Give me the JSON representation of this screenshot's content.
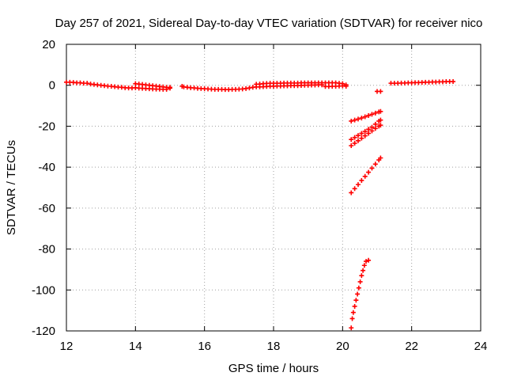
{
  "chart_data": {
    "type": "scatter",
    "title": "Day 257 of 2021, Sidereal Day-to-day VTEC variation (SDTVAR) for receiver nico",
    "xlabel": "GPS time / hours",
    "ylabel": "SDTVAR / TECUs",
    "xlim": [
      12,
      24
    ],
    "ylim": [
      -120,
      20
    ],
    "xticks": [
      12,
      14,
      16,
      18,
      20,
      22,
      24
    ],
    "yticks": [
      20,
      0,
      -20,
      -40,
      -60,
      -80,
      -100,
      -120
    ],
    "grid": true,
    "marker": "+",
    "color": "#ff0000",
    "series": [
      {
        "points": [
          [
            12.0,
            1.5
          ],
          [
            12.1,
            1.5
          ],
          [
            12.2,
            1.4
          ],
          [
            12.3,
            1.2
          ],
          [
            12.4,
            1.2
          ],
          [
            12.5,
            1.0
          ],
          [
            12.6,
            1.0
          ],
          [
            12.7,
            0.6
          ],
          [
            12.8,
            0.4
          ],
          [
            12.9,
            0.2
          ],
          [
            13.0,
            0.0
          ],
          [
            13.1,
            -0.2
          ],
          [
            13.2,
            -0.4
          ],
          [
            13.3,
            -0.5
          ],
          [
            13.4,
            -0.7
          ],
          [
            13.5,
            -0.9
          ],
          [
            13.6,
            -1.0
          ],
          [
            13.7,
            -1.2
          ],
          [
            13.8,
            -1.3
          ],
          [
            13.9,
            -1.3
          ],
          [
            14.0,
            -1.2
          ],
          [
            14.0,
            0.8
          ],
          [
            14.1,
            -1.4
          ],
          [
            14.1,
            0.6
          ],
          [
            14.2,
            -1.5
          ],
          [
            14.2,
            0.4
          ],
          [
            14.3,
            -1.6
          ],
          [
            14.3,
            0.2
          ],
          [
            14.4,
            -1.7
          ],
          [
            14.4,
            0.0
          ],
          [
            14.5,
            -1.8
          ],
          [
            14.5,
            -0.2
          ],
          [
            14.6,
            -1.9
          ],
          [
            14.6,
            -0.4
          ],
          [
            14.7,
            -1.9
          ],
          [
            14.7,
            -0.6
          ],
          [
            14.8,
            -2.0
          ],
          [
            14.8,
            -0.8
          ],
          [
            14.9,
            -2.0
          ],
          [
            14.9,
            -1.0
          ],
          [
            15.0,
            -1.4
          ],
          [
            15.0,
            -1.0
          ],
          [
            15.35,
            -0.5
          ],
          [
            15.4,
            -0.8
          ],
          [
            15.5,
            -1.0
          ],
          [
            15.6,
            -1.2
          ],
          [
            15.7,
            -1.3
          ],
          [
            15.8,
            -1.5
          ],
          [
            15.9,
            -1.6
          ],
          [
            16.0,
            -1.7
          ],
          [
            16.1,
            -1.8
          ],
          [
            16.2,
            -1.9
          ],
          [
            16.3,
            -2.0
          ],
          [
            16.4,
            -2.0
          ],
          [
            16.5,
            -2.0
          ],
          [
            16.6,
            -2.1
          ],
          [
            16.7,
            -2.1
          ],
          [
            16.8,
            -2.0
          ],
          [
            16.9,
            -2.0
          ],
          [
            17.0,
            -1.9
          ],
          [
            17.1,
            -1.8
          ],
          [
            17.2,
            -1.6
          ],
          [
            17.3,
            -1.3
          ],
          [
            17.4,
            -1.0
          ],
          [
            17.5,
            -0.8
          ],
          [
            17.5,
            0.5
          ],
          [
            17.6,
            -0.8
          ],
          [
            17.6,
            0.6
          ],
          [
            17.7,
            -0.7
          ],
          [
            17.7,
            0.8
          ],
          [
            17.8,
            -0.6
          ],
          [
            17.8,
            0.9
          ],
          [
            17.9,
            -0.5
          ],
          [
            17.9,
            1.0
          ],
          [
            18.0,
            -0.5
          ],
          [
            18.0,
            1.0
          ],
          [
            18.1,
            -0.4
          ],
          [
            18.1,
            1.0
          ],
          [
            18.2,
            -0.4
          ],
          [
            18.2,
            1.0
          ],
          [
            18.3,
            -0.3
          ],
          [
            18.3,
            1.1
          ],
          [
            18.4,
            -0.3
          ],
          [
            18.4,
            1.1
          ],
          [
            18.5,
            -0.2
          ],
          [
            18.5,
            1.1
          ],
          [
            18.6,
            -0.2
          ],
          [
            18.6,
            1.1
          ],
          [
            18.7,
            -0.2
          ],
          [
            18.7,
            1.1
          ],
          [
            18.8,
            -0.1
          ],
          [
            18.8,
            1.2
          ],
          [
            18.9,
            0.0
          ],
          [
            18.9,
            1.2
          ],
          [
            19.0,
            0.0
          ],
          [
            19.0,
            1.2
          ],
          [
            19.1,
            0.1
          ],
          [
            19.1,
            1.2
          ],
          [
            19.2,
            0.1
          ],
          [
            19.2,
            1.2
          ],
          [
            19.3,
            0.2
          ],
          [
            19.3,
            1.2
          ],
          [
            19.4,
            0.2
          ],
          [
            19.4,
            1.2
          ],
          [
            19.5,
            -0.6
          ],
          [
            19.5,
            1.2
          ],
          [
            19.6,
            -0.6
          ],
          [
            19.6,
            1.2
          ],
          [
            19.7,
            -0.5
          ],
          [
            19.7,
            1.2
          ],
          [
            19.8,
            -0.5
          ],
          [
            19.8,
            1.2
          ],
          [
            19.9,
            -0.4
          ],
          [
            19.9,
            1.0
          ],
          [
            20.0,
            -0.3
          ],
          [
            20.0,
            0.8
          ],
          [
            20.1,
            -0.5
          ],
          [
            20.1,
            0.2
          ],
          [
            21.0,
            -3.0
          ],
          [
            21.1,
            -3.0
          ],
          [
            21.4,
            1.0
          ],
          [
            21.5,
            1.0
          ],
          [
            21.6,
            1.0
          ],
          [
            21.7,
            1.1
          ],
          [
            21.8,
            1.1
          ],
          [
            21.9,
            1.2
          ],
          [
            22.0,
            1.2
          ],
          [
            22.1,
            1.3
          ],
          [
            22.2,
            1.3
          ],
          [
            22.3,
            1.4
          ],
          [
            22.4,
            1.5
          ],
          [
            22.5,
            1.5
          ],
          [
            22.6,
            1.6
          ],
          [
            22.7,
            1.6
          ],
          [
            22.8,
            1.7
          ],
          [
            22.9,
            1.7
          ],
          [
            23.0,
            1.8
          ],
          [
            23.1,
            1.8
          ],
          [
            23.2,
            1.8
          ]
        ]
      },
      {
        "points": [
          [
            20.25,
            -17.5
          ],
          [
            20.35,
            -17.0
          ],
          [
            20.45,
            -16.5
          ],
          [
            20.55,
            -16.0
          ],
          [
            20.65,
            -15.4
          ],
          [
            20.75,
            -14.8
          ],
          [
            20.85,
            -14.2
          ],
          [
            20.95,
            -13.6
          ],
          [
            21.05,
            -13.0
          ],
          [
            21.1,
            -12.8
          ]
        ]
      },
      {
        "points": [
          [
            20.25,
            -26.5
          ],
          [
            20.35,
            -25.5
          ],
          [
            20.45,
            -24.5
          ],
          [
            20.55,
            -23.5
          ],
          [
            20.65,
            -22.5
          ],
          [
            20.75,
            -21.5
          ],
          [
            20.85,
            -20.5
          ],
          [
            20.95,
            -19.0
          ],
          [
            21.05,
            -17.5
          ],
          [
            21.1,
            -17.0
          ]
        ]
      },
      {
        "points": [
          [
            20.25,
            -29.5
          ],
          [
            20.35,
            -28.3
          ],
          [
            20.45,
            -27.1
          ],
          [
            20.55,
            -25.9
          ],
          [
            20.65,
            -24.7
          ],
          [
            20.75,
            -23.5
          ],
          [
            20.85,
            -22.3
          ],
          [
            20.95,
            -21.1
          ],
          [
            21.05,
            -20.0
          ],
          [
            21.1,
            -19.5
          ]
        ]
      },
      {
        "points": [
          [
            20.25,
            -52.5
          ],
          [
            20.35,
            -50.5
          ],
          [
            20.45,
            -48.5
          ],
          [
            20.55,
            -46.5
          ],
          [
            20.65,
            -44.5
          ],
          [
            20.75,
            -42.5
          ],
          [
            20.85,
            -40.5
          ],
          [
            20.95,
            -38.5
          ],
          [
            21.05,
            -36.5
          ],
          [
            21.1,
            -35.5
          ]
        ]
      },
      {
        "points": [
          [
            20.25,
            -118.5
          ],
          [
            20.28,
            -114.0
          ],
          [
            20.31,
            -111.0
          ],
          [
            20.35,
            -108.0
          ],
          [
            20.39,
            -105.0
          ],
          [
            20.43,
            -102.0
          ],
          [
            20.47,
            -99.0
          ],
          [
            20.51,
            -96.0
          ],
          [
            20.55,
            -93.0
          ],
          [
            20.59,
            -90.5
          ],
          [
            20.63,
            -88.0
          ],
          [
            20.68,
            -86.0
          ],
          [
            20.75,
            -85.5
          ]
        ]
      }
    ]
  }
}
